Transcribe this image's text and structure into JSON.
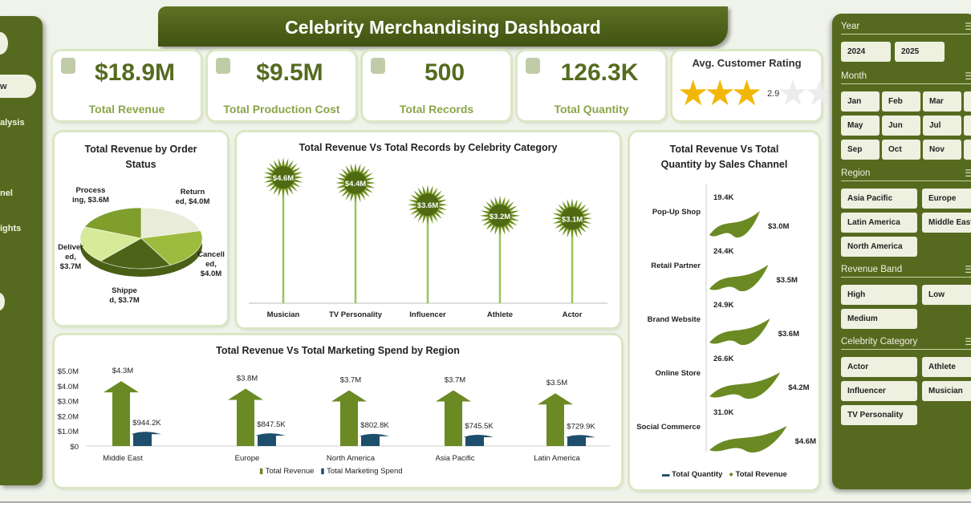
{
  "title": "Celebrity Merchandising Dashboard",
  "nav": {
    "items": [
      "w",
      "alysis",
      "nel",
      "ights"
    ]
  },
  "kpis": [
    {
      "value": "$18.9M",
      "label": "Total Revenue",
      "icon": "money-bag-icon"
    },
    {
      "value": "$9.5M",
      "label": "Total Production Cost",
      "icon": "hand-money-icon"
    },
    {
      "value": "500",
      "label": "Total Records",
      "icon": "records-icon"
    },
    {
      "value": "126.3K",
      "label": "Total Quantity",
      "icon": "clipboard-icon"
    }
  ],
  "rating": {
    "label": "Avg. Customer Rating",
    "value": "2.9",
    "stars_filled": 3,
    "stars_total": 5
  },
  "pie": {
    "title": "Total Revenue by Order Status",
    "labels": [
      "Return ed, $4.0M",
      "Cancell ed, $4.0M",
      "Shippe d, $3.7M",
      "Deliver ed, $3.7M",
      "Process ing, $3.6M"
    ]
  },
  "chart_data": [
    {
      "type": "pie",
      "title": "Total Revenue by Order Status",
      "categories": [
        "Returned",
        "Cancelled",
        "Shipped",
        "Delivered",
        "Processing"
      ],
      "values": [
        4.0,
        4.0,
        3.7,
        3.7,
        3.6
      ],
      "unit": "$M",
      "colors": [
        "#e8ecd8",
        "#9dbb3e",
        "#4d6418",
        "#d6eb9a",
        "#7f9e2c"
      ]
    },
    {
      "type": "bar",
      "title": "Total Revenue Vs Total Records by Celebrity Category",
      "categories": [
        "Musician",
        "TV Personality",
        "Influencer",
        "Athlete",
        "Actor"
      ],
      "values": [
        4.6,
        4.4,
        3.6,
        3.2,
        3.1
      ],
      "labels": [
        "$4.6M",
        "$4.4M",
        "$3.6M",
        "$3.2M",
        "$3.1M"
      ],
      "unit": "$M"
    },
    {
      "type": "bar",
      "title": "Total Revenue Vs Total Marketing Spend by Region",
      "categories": [
        "Middle East",
        "Europe",
        "North America",
        "Asia Pacific",
        "Latin America"
      ],
      "yticks": [
        "$5.0M",
        "$4.0M",
        "$3.0M",
        "$2.0M",
        "$1.0M",
        "$0"
      ],
      "ylim": [
        0,
        5
      ],
      "series": [
        {
          "name": "Total Revenue",
          "values": [
            4.3,
            3.8,
            3.7,
            3.7,
            3.5
          ],
          "labels": [
            "$4.3M",
            "$3.8M",
            "$3.7M",
            "$3.7M",
            "$3.5M"
          ],
          "color": "#6b8a24"
        },
        {
          "name": "Total Marketing Spend",
          "values": [
            0.9442,
            0.8475,
            0.8028,
            0.7455,
            0.7299
          ],
          "labels": [
            "$944.2K",
            "$847.5K",
            "$802.8K",
            "$745.5K",
            "$729.9K"
          ],
          "color": "#1d4e6b"
        }
      ],
      "legend": "bottom"
    },
    {
      "type": "bar",
      "title": "Total Revenue Vs Total Quantity by Sales Channel",
      "categories": [
        "Pop-Up Shop",
        "Retail Partner",
        "Brand Website",
        "Online Store",
        "Social Commerce"
      ],
      "series": [
        {
          "name": "Total Quantity",
          "values": [
            19.4,
            24.4,
            24.9,
            26.6,
            31.0
          ],
          "labels": [
            "19.4K",
            "24.4K",
            "24.9K",
            "26.6K",
            "31.0K"
          ],
          "color": "#1d4e6b"
        },
        {
          "name": "Total Revenue",
          "values": [
            3.0,
            3.5,
            3.6,
            4.2,
            4.6
          ],
          "labels": [
            "$3.0M",
            "$3.5M",
            "$3.6M",
            "$4.2M",
            "$4.6M"
          ],
          "color": "#6b8a24"
        }
      ],
      "legend": "bottom"
    }
  ],
  "slicers": [
    {
      "title": "Year",
      "items": [
        "2024",
        "2025"
      ]
    },
    {
      "title": "Month",
      "items": [
        "Jan",
        "Feb",
        "Mar",
        "May",
        "Jun",
        "Jul",
        "Sep",
        "Oct",
        "Nov"
      ]
    },
    {
      "title": "Region",
      "items": [
        "Asia Pacific",
        "Europe",
        "Latin America",
        "Middle East",
        "North America"
      ]
    },
    {
      "title": "Revenue Band",
      "items": [
        "High",
        "Low",
        "Medium"
      ]
    },
    {
      "title": "Celebrity Category",
      "items": [
        "Actor",
        "Athlete",
        "Influencer",
        "Musician",
        "TV Personality"
      ]
    }
  ]
}
